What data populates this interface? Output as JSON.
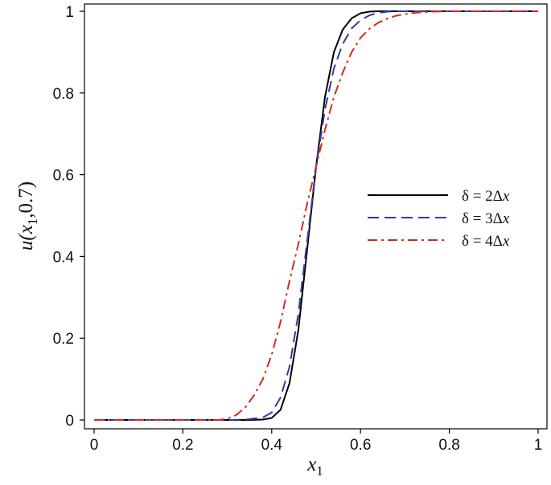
{
  "chart_data": {
    "type": "line",
    "title": "",
    "xlabel": "x",
    "xlabel_sub": "1",
    "ylabel_parts": [
      "u(",
      "x",
      "1",
      ",0.7)"
    ],
    "xlim": [
      0,
      1
    ],
    "ylim": [
      0,
      1
    ],
    "x_ticks": [
      0,
      0.2,
      0.4,
      0.6,
      0.8,
      1
    ],
    "x_tick_labels": [
      "0",
      "0.2",
      "0.4",
      "0.6",
      "0.8",
      "1"
    ],
    "y_ticks": [
      0,
      0.2,
      0.4,
      0.6,
      0.8,
      1
    ],
    "y_tick_labels": [
      "0",
      "0.2",
      "0.4",
      "0.6",
      "0.8",
      "1"
    ],
    "grid": false,
    "legend_position": "center-right",
    "series": [
      {
        "name": "δ = 2Δx",
        "legend_prefix": "δ = 2Δ",
        "legend_var": "x",
        "color": "#000000",
        "dash": "solid",
        "x": [
          0,
          0.3,
          0.35,
          0.38,
          0.4,
          0.42,
          0.44,
          0.46,
          0.48,
          0.5,
          0.52,
          0.54,
          0.56,
          0.58,
          0.6,
          0.62,
          0.64,
          0.66,
          0.7,
          1
        ],
        "y": [
          0,
          0,
          0,
          0.001,
          0.005,
          0.025,
          0.09,
          0.22,
          0.42,
          0.62,
          0.79,
          0.9,
          0.955,
          0.983,
          0.995,
          0.999,
          1,
          1,
          1,
          1
        ]
      },
      {
        "name": "δ = 3Δx",
        "legend_prefix": "δ = 3Δ",
        "legend_var": "x",
        "color": "#2b3f9e",
        "dash": "dashed",
        "x": [
          0,
          0.3,
          0.34,
          0.38,
          0.4,
          0.42,
          0.44,
          0.46,
          0.48,
          0.5,
          0.52,
          0.54,
          0.56,
          0.58,
          0.6,
          0.62,
          0.64,
          0.66,
          0.68,
          0.72,
          1
        ],
        "y": [
          0,
          0,
          0.001,
          0.006,
          0.018,
          0.055,
          0.13,
          0.26,
          0.44,
          0.62,
          0.76,
          0.86,
          0.92,
          0.958,
          0.978,
          0.99,
          0.996,
          0.999,
          1,
          1,
          1
        ]
      },
      {
        "name": "δ = 4Δx",
        "legend_prefix": "δ = 4Δ",
        "legend_var": "x",
        "color": "#d42a1c",
        "dash": "dashdot",
        "x": [
          0,
          0.28,
          0.3,
          0.32,
          0.34,
          0.36,
          0.38,
          0.4,
          0.42,
          0.44,
          0.46,
          0.48,
          0.5,
          0.52,
          0.54,
          0.56,
          0.58,
          0.6,
          0.62,
          0.64,
          0.66,
          0.68,
          0.7,
          0.72,
          0.76,
          0.8,
          1
        ],
        "y": [
          0,
          0,
          0.003,
          0.012,
          0.03,
          0.06,
          0.1,
          0.16,
          0.24,
          0.34,
          0.43,
          0.53,
          0.62,
          0.71,
          0.79,
          0.85,
          0.9,
          0.935,
          0.957,
          0.972,
          0.982,
          0.989,
          0.993,
          0.996,
          0.999,
          1,
          1
        ]
      }
    ]
  }
}
